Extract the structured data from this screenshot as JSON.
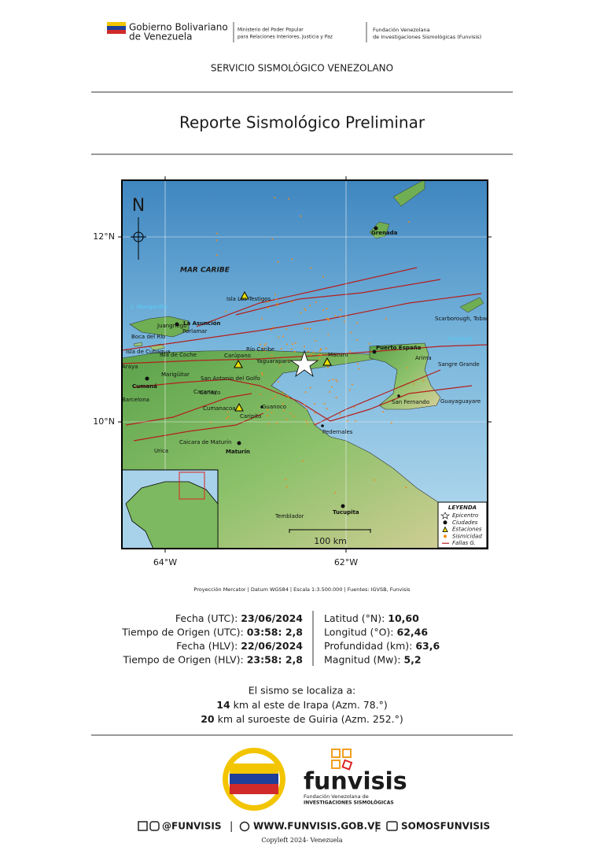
{
  "header": {
    "gov_line1": "Gobierno Bolivariano",
    "gov_line2": "de Venezuela",
    "ministry_line1": "Ministerio del Poder Popular",
    "ministry_line2": "para Relaciones Interiores, Justicia y Paz",
    "foundation_line1": "Fundación Venezolana",
    "foundation_line2": "de Investigaciones Sismológicas (Funvisis)"
  },
  "service": "SERVICIO SISMOLÓGICO VENEZOLANO",
  "title": "Reporte Sismológico Preliminar",
  "map": {
    "north": "N",
    "lat_ticks": [
      "12°N",
      "10°N"
    ],
    "lon_ticks": [
      "64°W",
      "62°W"
    ],
    "scale": "100 km",
    "sea": "MAR CARIBE",
    "places": [
      "Grenada",
      "Isla Los Testigos",
      "I. Margarita",
      "La Asunción",
      "Juangriego",
      "Porlamar",
      "Boca del Río",
      "Isla de Cubagua",
      "Isla de Coche",
      "Carúpano",
      "Río Caribe",
      "Yaguaraparo",
      "Puerto España",
      "Trinidad",
      "Arima",
      "Sangre Grande",
      "Scarborough, Tobago",
      "San Fernando",
      "Guayaguayare",
      "Pedernales",
      "Tucupita",
      "Temblador",
      "Maturín",
      "Caicara de Maturín",
      "Urica",
      "Caripito",
      "Guanoco",
      "Cumaná",
      "Araya",
      "Marigüitar",
      "San Antonio del Golfo",
      "Cariaco",
      "Casanay",
      "Cumanacoa",
      "Barcelona",
      "Macuro"
    ],
    "legend": {
      "title": "LEYENDA",
      "items": [
        "Epicentro",
        "Ciudades",
        "Estaciones",
        "Sismicidad",
        "Fallas G."
      ]
    }
  },
  "caption": "Proyección Mercator | Datum WGS84 | Escala 1:3.500.000 | Fuentes: IGVSB, Funvisis",
  "details": {
    "left": [
      {
        "label": "Fecha (UTC):",
        "value": "23/06/2024"
      },
      {
        "label": "Tiempo de Origen (UTC):",
        "value": "03:58: 2,8"
      },
      {
        "label": "Fecha (HLV):",
        "value": "22/06/2024"
      },
      {
        "label": "Tiempo de Origen (HLV):",
        "value": "23:58: 2,8"
      }
    ],
    "right": [
      {
        "label": "Latitud (°N):",
        "value": "10,60"
      },
      {
        "label": "Longitud (°O):",
        "value": "62,46"
      },
      {
        "label": "Profundidad (km):",
        "value": "63,6"
      },
      {
        "label": "Magnitud (Mw):",
        "value": "5,2"
      }
    ]
  },
  "location": {
    "intro": "El sismo se localiza a:",
    "lines": [
      {
        "distance": "14",
        "text": "km al este de Irapa (Azm. 78.°)"
      },
      {
        "distance": "20",
        "text": "km al suroeste de Guiria (Azm. 252.°)"
      }
    ]
  },
  "footer": {
    "logo_name": "funvisis",
    "logo_sub1": "Fundación Venezolana de",
    "logo_sub2": "INVESTIGACIONES SISMOLÓGICAS",
    "social": "@FUNVISIS",
    "web": "WWW.FUNVISIS.GOB.VE",
    "youtube": "SOMOSFUNVISIS",
    "copyleft": "Copyleft 2024- Venezuela"
  }
}
